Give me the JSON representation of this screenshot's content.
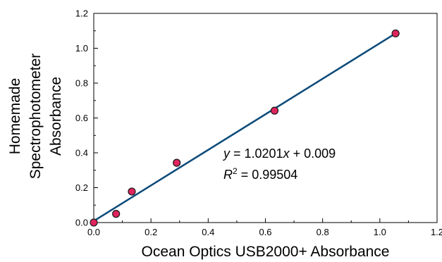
{
  "chart_data": {
    "type": "scatter",
    "xlabel": "Ocean Optics USB2000+ Absorbance",
    "ylabel_lines": [
      "Homemade",
      "Spectrophotometer",
      "Absorbance"
    ],
    "xlim": [
      0.0,
      1.2
    ],
    "ylim": [
      0.0,
      1.2
    ],
    "x_ticks": [
      "0.0",
      "0.2",
      "0.4",
      "0.6",
      "0.8",
      "1.0",
      "1.2"
    ],
    "y_ticks": [
      "0.0",
      "0.2",
      "0.4",
      "0.6",
      "0.8",
      "1.0",
      "1.2"
    ],
    "grid": false,
    "points": [
      {
        "x": 0.0,
        "y": 0.0
      },
      {
        "x": 0.078,
        "y": 0.05
      },
      {
        "x": 0.133,
        "y": 0.178
      },
      {
        "x": 0.29,
        "y": 0.343
      },
      {
        "x": 0.632,
        "y": 0.642
      },
      {
        "x": 1.055,
        "y": 1.085
      }
    ],
    "fit": {
      "slope": 1.0201,
      "intercept": 0.009,
      "x_range": [
        0.0,
        1.055
      ]
    },
    "equation": {
      "y": "y",
      "eq": " = 1.0201",
      "x": "x",
      "rest": " + 0.009"
    },
    "r2": {
      "R": "R",
      "sup": "2",
      "rest": " = 0.99504"
    },
    "colors": {
      "marker_fill": "#e0245e",
      "marker_edge": "#1a1a1a",
      "fit_line": "#0b4a7a",
      "axis": "#000000"
    }
  }
}
